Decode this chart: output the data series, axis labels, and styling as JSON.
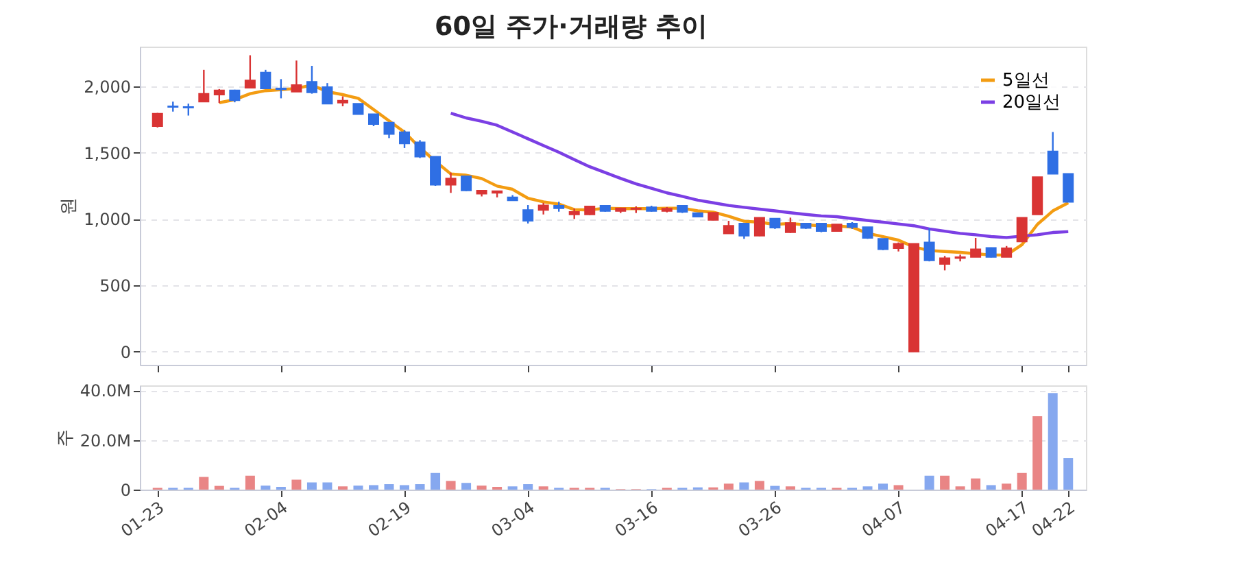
{
  "chart_data": [
    {
      "type": "candlestick",
      "title": "60일 주가·거래량 추이",
      "ylabel": "원",
      "categories": [
        null,
        null,
        null,
        null,
        null,
        null,
        null,
        null,
        null,
        null,
        null,
        null,
        null,
        null,
        null,
        null,
        null,
        null,
        null,
        null,
        null,
        null,
        null,
        null,
        null,
        null,
        null,
        null,
        null,
        null,
        null,
        null,
        null,
        null,
        null,
        null,
        null,
        null,
        null,
        null,
        null,
        null,
        null,
        null,
        null,
        null,
        null,
        null,
        null,
        null,
        null,
        null,
        null,
        null,
        null,
        null,
        null,
        null,
        null,
        null
      ],
      "ohlc": [
        [
          1700,
          1800,
          1690,
          1795
        ],
        [
          1850,
          1885,
          1810,
          1845
        ],
        [
          1845,
          1870,
          1780,
          1840
        ],
        [
          1885,
          2125,
          1885,
          1945
        ],
        [
          1938,
          1980,
          1875,
          1970
        ],
        [
          1970,
          1975,
          1880,
          1895
        ],
        [
          1990,
          2235,
          1990,
          2045
        ],
        [
          2105,
          2125,
          1980,
          1985
        ],
        [
          1985,
          2055,
          1910,
          1978
        ],
        [
          1960,
          2195,
          1960,
          2010
        ],
        [
          2035,
          2155,
          1945,
          1955
        ],
        [
          1995,
          2025,
          1870,
          1870
        ],
        [
          1877,
          1925,
          1850,
          1893
        ],
        [
          1870,
          1870,
          1790,
          1790
        ],
        [
          1790,
          1790,
          1700,
          1715
        ],
        [
          1727,
          1727,
          1610,
          1640
        ],
        [
          1655,
          1670,
          1535,
          1570
        ],
        [
          1578,
          1595,
          1460,
          1470
        ],
        [
          1470,
          1470,
          1250,
          1258
        ],
        [
          1258,
          1350,
          1197,
          1305
        ],
        [
          1322,
          1322,
          1210,
          1215
        ],
        [
          1190,
          1218,
          1170,
          1214
        ],
        [
          1197,
          1212,
          1163,
          1210
        ],
        [
          1163,
          1180,
          1138,
          1140
        ],
        [
          1068,
          1105,
          966,
          986
        ],
        [
          1068,
          1122,
          1034,
          1102
        ],
        [
          1100,
          1130,
          1055,
          1080
        ],
        [
          1034,
          1078,
          1000,
          1054
        ],
        [
          1034,
          1100,
          1030,
          1095
        ],
        [
          1100,
          1105,
          1055,
          1060
        ],
        [
          1060,
          1085,
          1045,
          1080
        ],
        [
          1075,
          1095,
          1045,
          1080
        ],
        [
          1088,
          1100,
          1055,
          1060
        ],
        [
          1060,
          1090,
          1050,
          1078
        ],
        [
          1100,
          1105,
          1045,
          1054
        ],
        [
          1044,
          1048,
          1013,
          1017
        ],
        [
          993,
          1050,
          990,
          1047
        ],
        [
          890,
          986,
          890,
          949
        ],
        [
          966,
          966,
          850,
          874
        ],
        [
          874,
          1010,
          870,
          1010
        ],
        [
          1003,
          1003,
          925,
          935
        ],
        [
          900,
          1010,
          895,
          969
        ],
        [
          966,
          966,
          925,
          932
        ],
        [
          966,
          966,
          900,
          908
        ],
        [
          908,
          959,
          908,
          959
        ],
        [
          966,
          976,
          925,
          940
        ],
        [
          938,
          938,
          850,
          857
        ],
        [
          850,
          850,
          765,
          772
        ],
        [
          779,
          823,
          755,
          813
        ],
        [
          0,
          813,
          0,
          813
        ],
        [
          823,
          932,
          680,
          687
        ],
        [
          660,
          721,
          612,
          704
        ],
        [
          705,
          731,
          680,
          712
        ],
        [
          714,
          857,
          714,
          772
        ],
        [
          782,
          785,
          710,
          714
        ],
        [
          714,
          796,
          714,
          779
        ],
        [
          830,
          1010,
          825,
          1010
        ],
        [
          1034,
          1316,
          1034,
          1316
        ],
        [
          1510,
          1656,
          1340,
          1340
        ],
        [
          1340,
          1340,
          1129,
          1129
        ]
      ],
      "colors": [
        "#d93434",
        "#2f6fe4",
        "#2f6fe4",
        "#d93434",
        "#d93434",
        "#2f6fe4",
        "#d93434",
        "#2f6fe4",
        "#2f6fe4",
        "#d93434",
        "#2f6fe4",
        "#2f6fe4",
        "#d93434",
        "#2f6fe4",
        "#2f6fe4",
        "#2f6fe4",
        "#2f6fe4",
        "#2f6fe4",
        "#2f6fe4",
        "#d93434",
        "#2f6fe4",
        "#d93434",
        "#d93434",
        "#2f6fe4",
        "#2f6fe4",
        "#d93434",
        "#2f6fe4",
        "#d93434",
        "#d93434",
        "#2f6fe4",
        "#d93434",
        "#d93434",
        "#2f6fe4",
        "#d93434",
        "#2f6fe4",
        "#2f6fe4",
        "#d93434",
        "#d93434",
        "#2f6fe4",
        "#d93434",
        "#2f6fe4",
        "#d93434",
        "#2f6fe4",
        "#2f6fe4",
        "#d93434",
        "#2f6fe4",
        "#2f6fe4",
        "#2f6fe4",
        "#d93434",
        "#d93434",
        "#2f6fe4",
        "#d93434",
        "#d93434",
        "#d93434",
        "#2f6fe4",
        "#d93434",
        "#d93434",
        "#d93434",
        "#2f6fe4",
        "#2f6fe4"
      ],
      "series": [
        {
          "name": "5일선",
          "type": "line",
          "color": "#f39c12",
          "values": [
            null,
            null,
            null,
            null,
            1877,
            1900,
            1945,
            1968,
            1975,
            1985,
            2010,
            1960,
            1938,
            1910,
            1825,
            1740,
            1655,
            1537,
            1435,
            1340,
            1330,
            1305,
            1248,
            1224,
            1156,
            1129,
            1112,
            1071,
            1068,
            1081,
            1078,
            1078,
            1078,
            1081,
            1081,
            1061,
            1051,
            1020,
            983,
            976,
            959,
            966,
            955,
            949,
            949,
            938,
            891,
            867,
            840,
            789,
            762,
            755,
            748,
            738,
            728,
            728,
            806,
            959,
            1061,
            1122
          ]
        },
        {
          "name": "20일선",
          "type": "line",
          "color": "#7b3fe4",
          "values": [
            null,
            null,
            null,
            null,
            null,
            null,
            null,
            null,
            null,
            null,
            null,
            null,
            null,
            null,
            null,
            null,
            null,
            null,
            null,
            1798,
            1762,
            1737,
            1707,
            1656,
            1605,
            1554,
            1503,
            1448,
            1394,
            1350,
            1306,
            1265,
            1231,
            1197,
            1170,
            1142,
            1122,
            1102,
            1088,
            1074,
            1061,
            1047,
            1034,
            1023,
            1017,
            1003,
            989,
            976,
            962,
            949,
            925,
            908,
            891,
            881,
            867,
            860,
            null,
            881,
            898,
            904
          ]
        }
      ],
      "ylim": [
        -100,
        2300
      ],
      "yticks": [
        0,
        500,
        {
          "value": 1000,
          "label": "1,000"
        },
        {
          "value": 1500,
          "label": "1,500"
        },
        {
          "value": 2000,
          "label": "2,000"
        }
      ],
      "grid": "y",
      "legend": "top right",
      "tick_labels": "y"
    },
    {
      "type": "bar",
      "ylabel": "주",
      "categories": [
        "01-23",
        null,
        null,
        null,
        null,
        null,
        null,
        null,
        "02-04",
        null,
        null,
        null,
        null,
        null,
        null,
        null,
        "02-19",
        null,
        null,
        null,
        null,
        null,
        null,
        null,
        "03-04",
        null,
        null,
        null,
        null,
        null,
        null,
        null,
        "03-16",
        null,
        null,
        null,
        null,
        null,
        null,
        null,
        "03-26",
        null,
        null,
        null,
        null,
        null,
        null,
        null,
        "04-07",
        null,
        null,
        null,
        null,
        null,
        null,
        null,
        "04-17",
        null,
        null,
        "04-22"
      ],
      "values": [
        700000,
        700000,
        700000,
        5100000,
        1500000,
        700000,
        5600000,
        1600000,
        1100000,
        4000000,
        2900000,
        2900000,
        1300000,
        1600000,
        1800000,
        2200000,
        1800000,
        2200000,
        6700000,
        3500000,
        2700000,
        1600000,
        1100000,
        1300000,
        2200000,
        1300000,
        700000,
        700000,
        700000,
        700000,
        200000,
        200000,
        200000,
        700000,
        700000,
        900000,
        900000,
        2400000,
        2900000,
        3500000,
        1500000,
        1300000,
        700000,
        700000,
        700000,
        700000,
        1300000,
        2400000,
        1800000,
        null,
        5600000,
        5600000,
        1300000,
        4500000,
        1800000,
        2400000,
        6700000,
        29600000,
        38900000,
        12700000
      ],
      "colors": [
        "#e98585",
        "#86a8ef",
        "#86a8ef",
        "#e98585",
        "#e98585",
        "#86a8ef",
        "#e98585",
        "#86a8ef",
        "#86a8ef",
        "#e98585",
        "#86a8ef",
        "#86a8ef",
        "#e98585",
        "#86a8ef",
        "#86a8ef",
        "#86a8ef",
        "#86a8ef",
        "#86a8ef",
        "#86a8ef",
        "#e98585",
        "#86a8ef",
        "#e98585",
        "#e98585",
        "#86a8ef",
        "#86a8ef",
        "#e98585",
        "#86a8ef",
        "#e98585",
        "#e98585",
        "#86a8ef",
        "#e98585",
        "#e98585",
        "#86a8ef",
        "#e98585",
        "#86a8ef",
        "#86a8ef",
        "#e98585",
        "#e98585",
        "#86a8ef",
        "#e98585",
        "#86a8ef",
        "#e98585",
        "#86a8ef",
        "#86a8ef",
        "#e98585",
        "#86a8ef",
        "#86a8ef",
        "#86a8ef",
        "#e98585",
        "#e98585",
        "#86a8ef",
        "#e98585",
        "#e98585",
        "#e98585",
        "#86a8ef",
        "#e98585",
        "#e98585",
        "#e98585",
        "#86a8ef",
        "#86a8ef"
      ],
      "ylim": [
        0,
        42000000
      ],
      "yticks": [
        0,
        {
          "value": 20000000,
          "label": "20.0M"
        },
        {
          "value": 40000000,
          "label": "40.0M"
        }
      ],
      "grid": "y"
    }
  ]
}
